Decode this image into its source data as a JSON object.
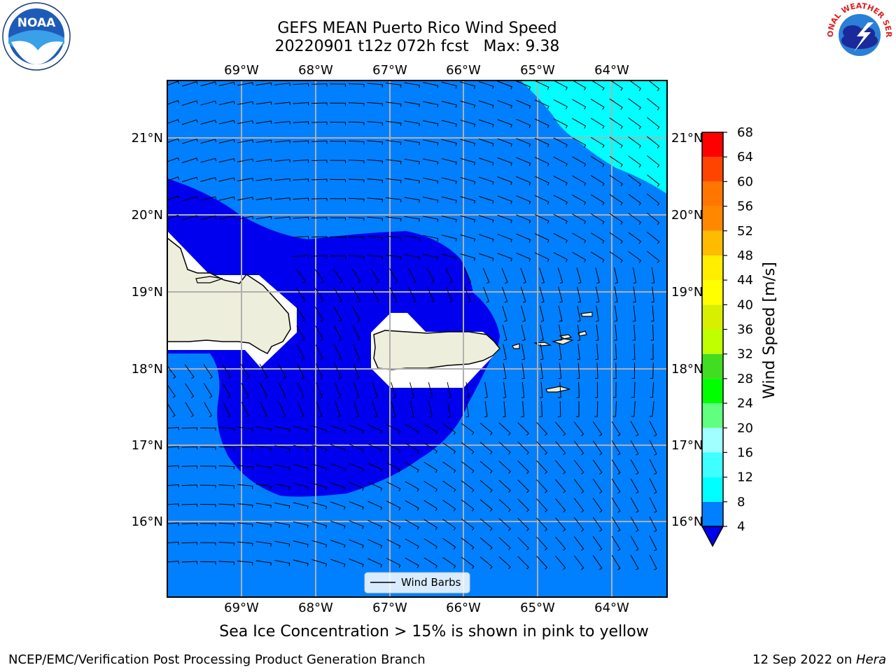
{
  "title_line1": "GEFS MEAN Puerto Rico Wind Speed",
  "title_line2": "20220901 t12z 072h fcst   Max: 9.38",
  "map": {
    "lon_labels": [
      "69°W",
      "68°W",
      "67°W",
      "66°W",
      "65°W",
      "64°W"
    ],
    "lat_labels": [
      "21°N",
      "20°N",
      "19°N",
      "18°N",
      "17°N",
      "16°N"
    ],
    "legend_label": "Wind Barbs",
    "colors": {
      "land": "#eeeedc",
      "ocean_low": "#0080ff",
      "ocean_very_low": "#0000ee",
      "ocean_mid": "#00ffff",
      "grid": "#b0b0b0"
    }
  },
  "colorbar": {
    "label": "Wind Speed [m/s]",
    "ticks": [
      "68",
      "64",
      "60",
      "56",
      "52",
      "48",
      "44",
      "40",
      "36",
      "32",
      "28",
      "24",
      "20",
      "16",
      "12",
      "8",
      "4"
    ],
    "bands": [
      {
        "from": 4,
        "to": 8,
        "color": "#0080ff"
      },
      {
        "from": 8,
        "to": 12,
        "color": "#00ffff"
      },
      {
        "from": 12,
        "to": 16,
        "color": "#40ffff"
      },
      {
        "from": 16,
        "to": 20,
        "color": "#a0ffff"
      },
      {
        "from": 20,
        "to": 24,
        "color": "#60ff80"
      },
      {
        "from": 24,
        "to": 28,
        "color": "#00ff00"
      },
      {
        "from": 28,
        "to": 32,
        "color": "#40dd20"
      },
      {
        "from": 32,
        "to": 36,
        "color": "#c0ff00"
      },
      {
        "from": 36,
        "to": 40,
        "color": "#d8f000"
      },
      {
        "from": 40,
        "to": 44,
        "color": "#ffff00"
      },
      {
        "from": 44,
        "to": 48,
        "color": "#ffee00"
      },
      {
        "from": 48,
        "to": 52,
        "color": "#ffbb00"
      },
      {
        "from": 52,
        "to": 56,
        "color": "#ff8800"
      },
      {
        "from": 56,
        "to": 60,
        "color": "#ff7700"
      },
      {
        "from": 60,
        "to": 64,
        "color": "#ff4400"
      },
      {
        "from": 64,
        "to": 68,
        "color": "#ff0000"
      }
    ],
    "extend_color": "#0000ee"
  },
  "footer": {
    "sea_ice_note": "Sea Ice Concentration > 15% is shown in pink to yellow",
    "credit": "NCEP/EMC/Verification Post Processing Product Generation Branch",
    "date": "12 Sep 2022 on ",
    "machine": "Hera"
  },
  "logos": {
    "noaa_text": "NOAA",
    "nws_text": "NATIONAL WEATHER SERVICE"
  }
}
